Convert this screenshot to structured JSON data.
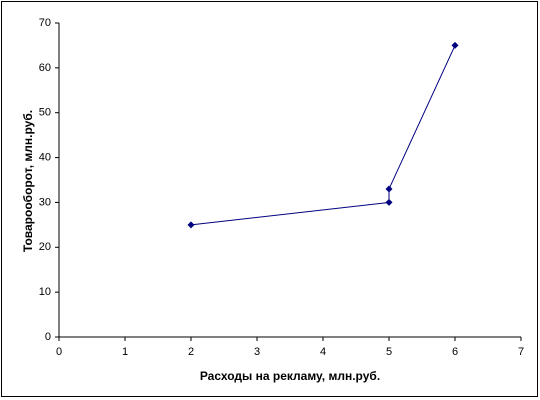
{
  "chart_data": {
    "type": "line",
    "x": [
      2,
      5,
      5,
      6
    ],
    "values": [
      25,
      30,
      33,
      65
    ],
    "color": "#000080",
    "x_label": "Расходы на рекламу, млн.руб.",
    "y_label": "Товарооборот, млн.руб.",
    "xlim": [
      0,
      7
    ],
    "xticks": [
      0,
      1,
      2,
      3,
      4,
      5,
      6,
      7
    ],
    "ylim": [
      0,
      70
    ],
    "yticks": [
      0,
      10,
      20,
      30,
      40,
      50,
      60,
      70
    ]
  }
}
